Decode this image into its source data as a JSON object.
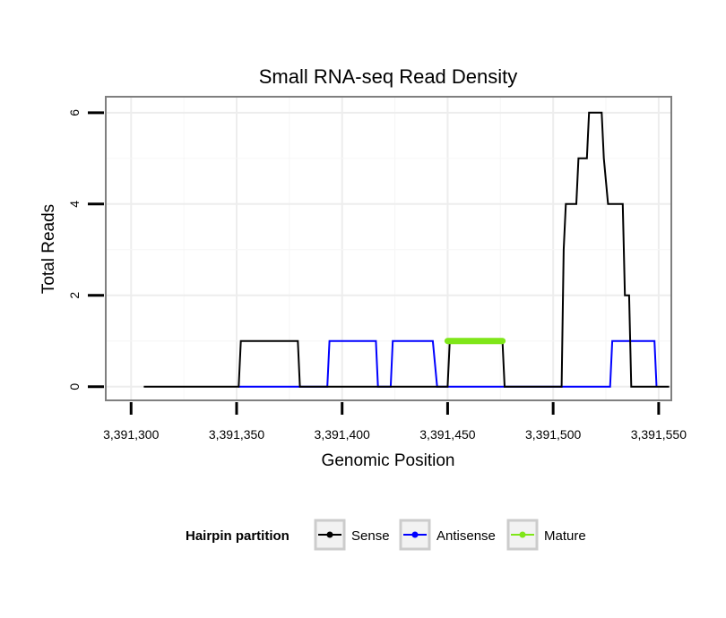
{
  "chart_data": {
    "type": "line",
    "title": "Small RNA-seq Read Density",
    "xlabel": "Genomic Position",
    "ylabel": "Total Reads",
    "xlim": [
      3391288,
      3391556
    ],
    "ylim": [
      -0.3,
      6.35
    ],
    "x_ticks": [
      3391300,
      3391350,
      3391400,
      3391450,
      3391500,
      3391550
    ],
    "x_tick_labels": [
      "3,391,300",
      "3,391,350",
      "3,391,400",
      "3,391,450",
      "3,391,500",
      "3,391,550"
    ],
    "y_ticks": [
      0,
      2,
      4,
      6
    ],
    "y_tick_labels": [
      "0",
      "2",
      "4",
      "6"
    ],
    "grid": true,
    "legend": {
      "title": "Hairpin partition",
      "position": "bottom",
      "entries": [
        "Sense",
        "Antisense",
        "Mature"
      ]
    },
    "series": [
      {
        "name": "Sense",
        "color": "#000000",
        "points": [
          [
            3391306,
            0
          ],
          [
            3391351,
            0
          ],
          [
            3391352,
            1
          ],
          [
            3391379,
            1
          ],
          [
            3391380,
            0
          ],
          [
            3391450,
            0
          ],
          [
            3391451,
            1
          ],
          [
            3391476,
            1
          ],
          [
            3391477,
            0
          ],
          [
            3391504,
            0
          ],
          [
            3391505,
            3
          ],
          [
            3391506,
            4
          ],
          [
            3391511,
            4
          ],
          [
            3391512,
            5
          ],
          [
            3391516,
            5
          ],
          [
            3391517,
            6
          ],
          [
            3391523,
            6
          ],
          [
            3391524,
            5
          ],
          [
            3391526,
            4
          ],
          [
            3391533,
            4
          ],
          [
            3391534,
            2
          ],
          [
            3391536,
            2
          ],
          [
            3391537,
            0
          ],
          [
            3391555,
            0
          ]
        ]
      },
      {
        "name": "Antisense",
        "color": "#0000ff",
        "points": [
          [
            3391351,
            0
          ],
          [
            3391393,
            0
          ],
          [
            3391394,
            1
          ],
          [
            3391416,
            1
          ],
          [
            3391417,
            0
          ],
          [
            3391423,
            0
          ],
          [
            3391424,
            1
          ],
          [
            3391443,
            1
          ],
          [
            3391445,
            0
          ],
          [
            3391527,
            0
          ],
          [
            3391528,
            1
          ],
          [
            3391548,
            1
          ],
          [
            3391549,
            0
          ]
        ]
      },
      {
        "name": "Mature",
        "color": "#7fe619",
        "points": [
          [
            3391450,
            1
          ],
          [
            3391476,
            1
          ]
        ]
      }
    ]
  }
}
